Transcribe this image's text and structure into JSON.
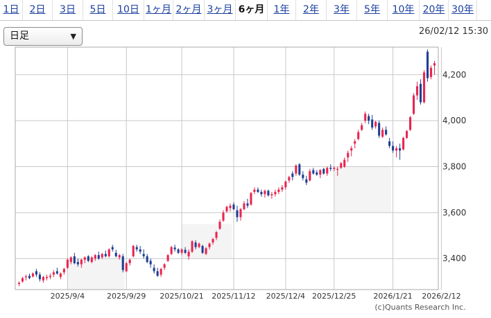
{
  "tabs": [
    {
      "label": "1日",
      "active": false
    },
    {
      "label": "2日",
      "active": false
    },
    {
      "label": "3日",
      "active": false
    },
    {
      "label": "5日",
      "active": false
    },
    {
      "label": "10日",
      "active": false
    },
    {
      "label": "1ヶ月",
      "active": false
    },
    {
      "label": "2ヶ月",
      "active": false
    },
    {
      "label": "3ヶ月",
      "active": false
    },
    {
      "label": "6ヶ月",
      "active": true
    },
    {
      "label": "1年",
      "active": false
    },
    {
      "label": "2年",
      "active": false
    },
    {
      "label": "3年",
      "active": false
    },
    {
      "label": "5年",
      "active": false
    },
    {
      "label": "10年",
      "active": false
    },
    {
      "label": "20年",
      "active": false
    },
    {
      "label": "30年",
      "active": false
    }
  ],
  "period_select": {
    "value": "日足"
  },
  "timestamp": "26/02/12 15:30",
  "credit": "(c)Quants Research Inc.",
  "colors": {
    "up": "#e8264f",
    "down": "#1f3f95",
    "grid": "#c8c8c8",
    "shade": "#f4f4f4"
  },
  "chart_data": {
    "type": "candlestick",
    "y_ticks": [
      3400,
      3600,
      3800,
      4000,
      4200
    ],
    "y_tick_labels": [
      "3,400",
      "3,600",
      "3,800",
      "4,000",
      "4,200"
    ],
    "ylim": [
      3265,
      4320
    ],
    "x_tick_labels": [
      "2025/9/4",
      "2025/9/29",
      "2025/10/21",
      "2025/11/12",
      "2025/12/4",
      "2025/12/25",
      "2026/1/21",
      "2026/2/12"
    ],
    "x_tick_index": [
      14,
      31,
      47,
      62,
      77,
      91,
      108,
      122
    ],
    "shaded_bands": [
      {
        "from_index": 14,
        "to_index": 30,
        "y_low": 3265,
        "y_high": 3400
      },
      {
        "from_index": 47,
        "to_index": 61,
        "y_low": 3400,
        "y_high": 3550
      },
      {
        "from_index": 91,
        "to_index": 107,
        "y_low": 3600,
        "y_high": 3800
      }
    ],
    "ohlc": [
      [
        3290,
        3300,
        3280,
        3295
      ],
      [
        3300,
        3320,
        3295,
        3315
      ],
      [
        3318,
        3330,
        3305,
        3322
      ],
      [
        3325,
        3335,
        3310,
        3315
      ],
      [
        3322,
        3340,
        3318,
        3335
      ],
      [
        3345,
        3355,
        3320,
        3330
      ],
      [
        3330,
        3340,
        3300,
        3310
      ],
      [
        3305,
        3325,
        3295,
        3320
      ],
      [
        3315,
        3330,
        3305,
        3320
      ],
      [
        3320,
        3335,
        3310,
        3325
      ],
      [
        3330,
        3350,
        3320,
        3340
      ],
      [
        3345,
        3360,
        3330,
        3335
      ],
      [
        3320,
        3340,
        3310,
        3335
      ],
      [
        3340,
        3360,
        3330,
        3355
      ],
      [
        3360,
        3400,
        3355,
        3395
      ],
      [
        3385,
        3410,
        3375,
        3405
      ],
      [
        3410,
        3425,
        3375,
        3380
      ],
      [
        3385,
        3400,
        3365,
        3375
      ],
      [
        3375,
        3400,
        3360,
        3395
      ],
      [
        3395,
        3410,
        3380,
        3405
      ],
      [
        3410,
        3415,
        3385,
        3390
      ],
      [
        3385,
        3410,
        3380,
        3405
      ],
      [
        3400,
        3420,
        3390,
        3415
      ],
      [
        3415,
        3430,
        3395,
        3400
      ],
      [
        3405,
        3425,
        3398,
        3420
      ],
      [
        3420,
        3435,
        3405,
        3410
      ],
      [
        3410,
        3445,
        3405,
        3440
      ],
      [
        3450,
        3460,
        3430,
        3440
      ],
      [
        3425,
        3438,
        3405,
        3410
      ],
      [
        3405,
        3420,
        3395,
        3415
      ],
      [
        3410,
        3420,
        3340,
        3350
      ],
      [
        3345,
        3385,
        3340,
        3380
      ],
      [
        3380,
        3400,
        3370,
        3395
      ],
      [
        3410,
        3460,
        3405,
        3455
      ],
      [
        3450,
        3460,
        3430,
        3440
      ],
      [
        3440,
        3455,
        3420,
        3430
      ],
      [
        3420,
        3440,
        3400,
        3410
      ],
      [
        3410,
        3420,
        3380,
        3385
      ],
      [
        3390,
        3400,
        3360,
        3375
      ],
      [
        3360,
        3375,
        3335,
        3345
      ],
      [
        3345,
        3360,
        3320,
        3325
      ],
      [
        3330,
        3360,
        3320,
        3355
      ],
      [
        3360,
        3380,
        3350,
        3375
      ],
      [
        3390,
        3420,
        3385,
        3415
      ],
      [
        3420,
        3455,
        3415,
        3450
      ],
      [
        3448,
        3460,
        3430,
        3440
      ],
      [
        3440,
        3445,
        3420,
        3425
      ],
      [
        3425,
        3445,
        3415,
        3440
      ],
      [
        3438,
        3450,
        3420,
        3425
      ],
      [
        3410,
        3440,
        3395,
        3430
      ],
      [
        3430,
        3480,
        3425,
        3475
      ],
      [
        3470,
        3480,
        3440,
        3450
      ],
      [
        3450,
        3470,
        3445,
        3465
      ],
      [
        3455,
        3460,
        3420,
        3425
      ],
      [
        3420,
        3450,
        3415,
        3445
      ],
      [
        3450,
        3470,
        3440,
        3465
      ],
      [
        3470,
        3490,
        3460,
        3485
      ],
      [
        3490,
        3520,
        3480,
        3515
      ],
      [
        3530,
        3570,
        3525,
        3560
      ],
      [
        3565,
        3610,
        3560,
        3600
      ],
      [
        3605,
        3630,
        3600,
        3625
      ],
      [
        3620,
        3640,
        3605,
        3630
      ],
      [
        3635,
        3645,
        3610,
        3615
      ],
      [
        3610,
        3630,
        3560,
        3580
      ],
      [
        3580,
        3620,
        3565,
        3615
      ],
      [
        3615,
        3650,
        3610,
        3640
      ],
      [
        3640,
        3660,
        3620,
        3630
      ],
      [
        3635,
        3690,
        3630,
        3685
      ],
      [
        3690,
        3710,
        3680,
        3700
      ],
      [
        3700,
        3710,
        3685,
        3690
      ],
      [
        3690,
        3700,
        3670,
        3680
      ],
      [
        3680,
        3700,
        3665,
        3695
      ],
      [
        3695,
        3700,
        3670,
        3675
      ],
      [
        3675,
        3690,
        3660,
        3680
      ],
      [
        3680,
        3700,
        3670,
        3690
      ],
      [
        3690,
        3710,
        3680,
        3700
      ],
      [
        3700,
        3720,
        3690,
        3710
      ],
      [
        3710,
        3740,
        3700,
        3735
      ],
      [
        3740,
        3760,
        3730,
        3755
      ],
      [
        3770,
        3780,
        3740,
        3755
      ],
      [
        3770,
        3810,
        3760,
        3805
      ],
      [
        3810,
        3815,
        3760,
        3765
      ],
      [
        3765,
        3780,
        3740,
        3750
      ],
      [
        3745,
        3760,
        3720,
        3730
      ],
      [
        3740,
        3790,
        3735,
        3780
      ],
      [
        3785,
        3795,
        3765,
        3770
      ],
      [
        3775,
        3785,
        3760,
        3765
      ],
      [
        3765,
        3790,
        3750,
        3785
      ],
      [
        3790,
        3795,
        3765,
        3770
      ],
      [
        3770,
        3800,
        3760,
        3795
      ],
      [
        3795,
        3810,
        3780,
        3790
      ],
      [
        3790,
        3800,
        3780,
        3795
      ],
      [
        3790,
        3800,
        3760,
        3790
      ],
      [
        3795,
        3820,
        3790,
        3815
      ],
      [
        3800,
        3840,
        3795,
        3830
      ],
      [
        3840,
        3870,
        3820,
        3860
      ],
      [
        3870,
        3890,
        3845,
        3880
      ],
      [
        3900,
        3920,
        3880,
        3910
      ],
      [
        3920,
        3960,
        3915,
        3950
      ],
      [
        3960,
        3990,
        3955,
        3980
      ],
      [
        4000,
        4040,
        3990,
        4030
      ],
      [
        4020,
        4030,
        3985,
        4000
      ],
      [
        4005,
        4025,
        3960,
        3970
      ],
      [
        3975,
        4000,
        3965,
        3995
      ],
      [
        3990,
        4000,
        3925,
        3935
      ],
      [
        3930,
        3970,
        3925,
        3960
      ],
      [
        3960,
        3975,
        3935,
        3940
      ],
      [
        3910,
        3925,
        3880,
        3890
      ],
      [
        3890,
        3910,
        3860,
        3870
      ],
      [
        3870,
        3890,
        3840,
        3880
      ],
      [
        3880,
        3900,
        3830,
        3870
      ],
      [
        3875,
        3930,
        3870,
        3925
      ],
      [
        3925,
        3960,
        3920,
        3955
      ],
      [
        3960,
        4020,
        3955,
        4015
      ],
      [
        4030,
        4120,
        4025,
        4110
      ],
      [
        4110,
        4170,
        4090,
        4150
      ],
      [
        4160,
        4180,
        4070,
        4080
      ],
      [
        4080,
        4220,
        4075,
        4210
      ],
      [
        4300,
        4310,
        4170,
        4185
      ],
      [
        4190,
        4240,
        4180,
        4230
      ],
      [
        4240,
        4260,
        4200,
        4250
      ]
    ]
  }
}
